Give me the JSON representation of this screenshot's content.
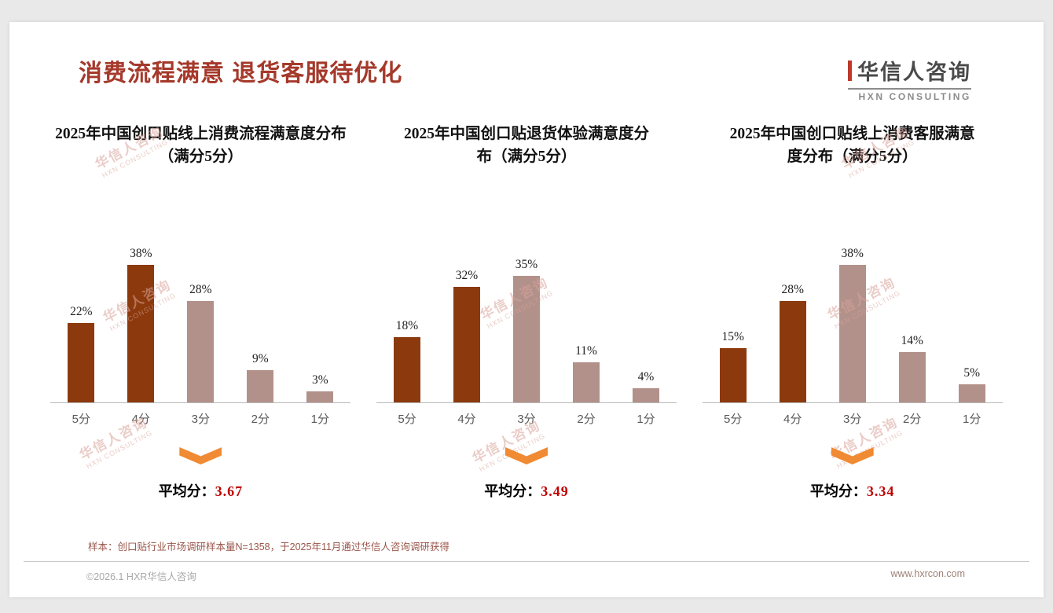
{
  "page": {
    "title": "消费流程满意 退货客服待优化",
    "logo_cn": "华信人咨询",
    "logo_en": "HXN CONSULTING",
    "watermark_cn": "华信人咨询",
    "watermark_en": "HXN CONSULTING",
    "footnote": "样本：创口贴行业市场调研样本量N=1358，于2025年11月通过华信人咨询调研获得",
    "footer_left": "©2026.1 HXR华信人咨询",
    "footer_right": "www.hxrcon.com"
  },
  "colors": {
    "title": "#A5392B",
    "bar_dark": "#8C3A0D",
    "bar_light": "#B2918A",
    "arrow": "#F08A33",
    "avg_value": "#C00000",
    "logo_red": "#C0392B"
  },
  "chart_data": [
    {
      "type": "bar",
      "title": "2025年中国创口贴线上消费流程满意度分布（满分5分）",
      "categories": [
        "5分",
        "4分",
        "3分",
        "2分",
        "1分"
      ],
      "values": [
        22,
        38,
        28,
        9,
        3
      ],
      "unit": "%",
      "bar_colors": [
        "dark",
        "dark",
        "light",
        "light",
        "light"
      ],
      "avg_label": "平均分：",
      "avg_value": "3.67",
      "ylim": [
        0,
        40
      ],
      "grid": false,
      "legend": "none"
    },
    {
      "type": "bar",
      "title": "2025年中国创口贴退货体验满意度分布（满分5分）",
      "categories": [
        "5分",
        "4分",
        "3分",
        "2分",
        "1分"
      ],
      "values": [
        18,
        32,
        35,
        11,
        4
      ],
      "unit": "%",
      "bar_colors": [
        "dark",
        "dark",
        "light",
        "light",
        "light"
      ],
      "avg_label": "平均分：",
      "avg_value": "3.49",
      "ylim": [
        0,
        40
      ],
      "grid": false,
      "legend": "none"
    },
    {
      "type": "bar",
      "title": "2025年中国创口贴线上消费客服满意度分布（满分5分）",
      "categories": [
        "5分",
        "4分",
        "3分",
        "2分",
        "1分"
      ],
      "values": [
        15,
        28,
        38,
        14,
        5
      ],
      "unit": "%",
      "bar_colors": [
        "dark",
        "dark",
        "light",
        "light",
        "light"
      ],
      "avg_label": "平均分：",
      "avg_value": "3.34",
      "ylim": [
        0,
        40
      ],
      "grid": false,
      "legend": "none"
    }
  ]
}
